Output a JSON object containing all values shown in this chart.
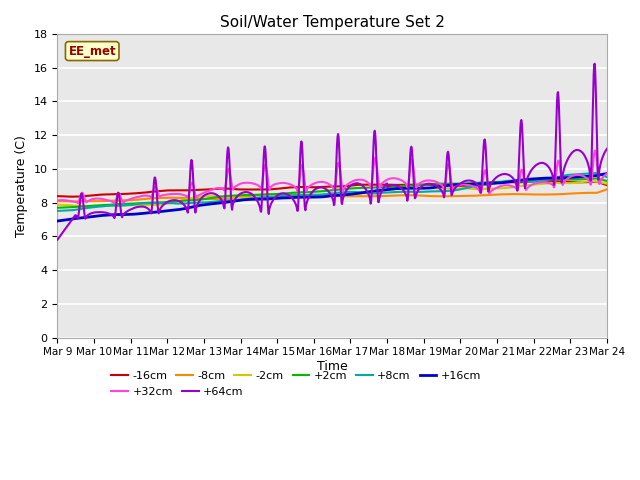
{
  "title": "Soil/Water Temperature Set 2",
  "xlabel": "Time",
  "ylabel": "Temperature (C)",
  "ylim": [
    0,
    18
  ],
  "yticks": [
    0,
    2,
    4,
    6,
    8,
    10,
    12,
    14,
    16,
    18
  ],
  "xlim": [
    0,
    15
  ],
  "xtick_labels": [
    "Mar 9",
    "Mar 10",
    "Mar 11",
    "Mar 12",
    "Mar 13",
    "Mar 14",
    "Mar 15",
    "Mar 16",
    "Mar 17",
    "Mar 18",
    "Mar 19",
    "Mar 20",
    "Mar 21",
    "Mar 22",
    "Mar 23",
    "Mar 24"
  ],
  "annotation_text": "EE_met",
  "annotation_bg": "#ffffcc",
  "annotation_border": "#886600",
  "annotation_text_color": "#990000",
  "series_order": [
    "-16cm",
    "-8cm",
    "-2cm",
    "+2cm",
    "+8cm",
    "+16cm",
    "+32cm",
    "+64cm"
  ],
  "series": {
    "-16cm": {
      "color": "#cc0000",
      "lw": 1.5
    },
    "-8cm": {
      "color": "#ff8800",
      "lw": 1.5
    },
    "-2cm": {
      "color": "#cccc00",
      "lw": 1.5
    },
    "+2cm": {
      "color": "#00bb00",
      "lw": 1.5
    },
    "+8cm": {
      "color": "#00aaaa",
      "lw": 1.5
    },
    "+16cm": {
      "color": "#0000cc",
      "lw": 2.0
    },
    "+32cm": {
      "color": "#ff44dd",
      "lw": 1.5
    },
    "+64cm": {
      "color": "#9900cc",
      "lw": 1.5
    }
  },
  "background_color": "#e8e8e8",
  "grid_color": "#ffffff"
}
